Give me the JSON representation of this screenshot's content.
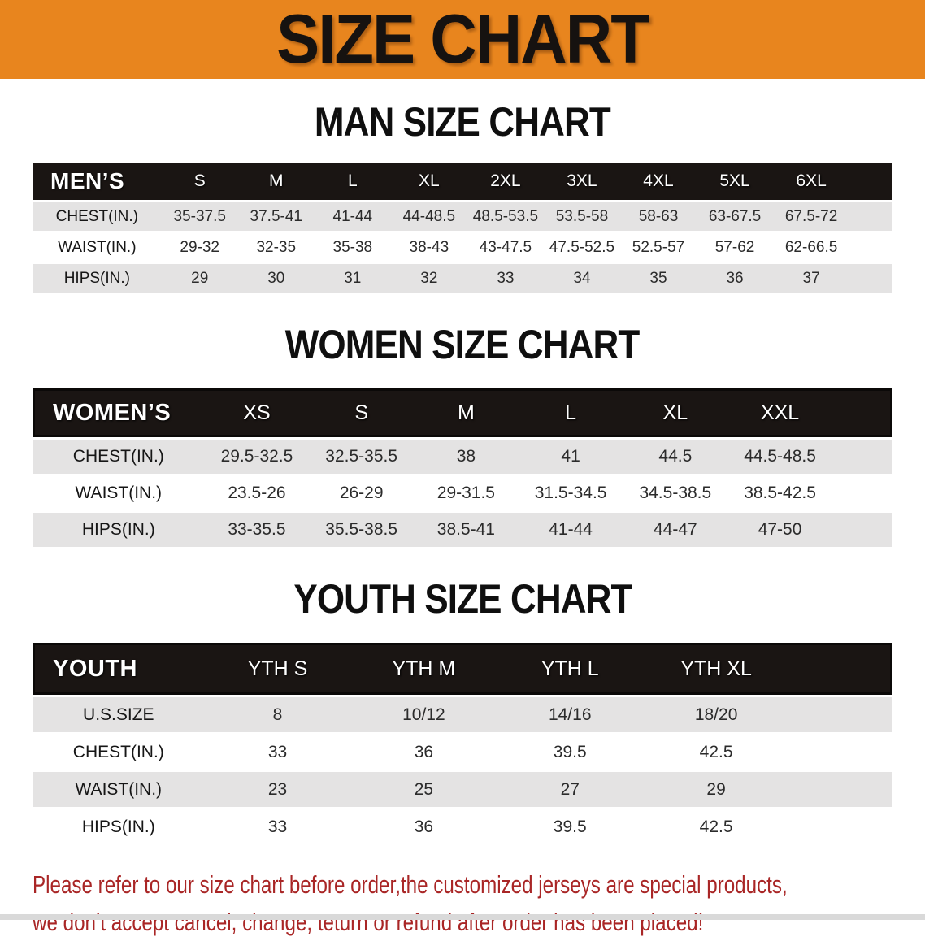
{
  "banner": {
    "title": "SIZE CHART"
  },
  "sections": [
    {
      "title": "MAN SIZE CHART",
      "header_label": "MEN’S",
      "columns": [
        "S",
        "M",
        "L",
        "XL",
        "2XL",
        "3XL",
        "4XL",
        "5XL",
        "6XL"
      ],
      "rows": [
        {
          "label": "CHEST(IN.)",
          "values": [
            "35-37.5",
            "37.5-41",
            "41-44",
            "44-48.5",
            "48.5-53.5",
            "53.5-58",
            "58-63",
            "63-67.5",
            "67.5-72"
          ]
        },
        {
          "label": "WAIST(IN.)",
          "values": [
            "29-32",
            "32-35",
            "35-38",
            "38-43",
            "43-47.5",
            "47.5-52.5",
            "52.5-57",
            "57-62",
            "62-66.5"
          ]
        },
        {
          "label": "HIPS(IN.)",
          "values": [
            "29",
            "30",
            "31",
            "32",
            "33",
            "34",
            "35",
            "36",
            "37"
          ]
        }
      ]
    },
    {
      "title": "WOMEN SIZE CHART",
      "header_label": "WOMEN’S",
      "columns": [
        "XS",
        "S",
        "M",
        "L",
        "XL",
        "XXL"
      ],
      "rows": [
        {
          "label": "CHEST(IN.)",
          "values": [
            "29.5-32.5",
            "32.5-35.5",
            "38",
            "41",
            "44.5",
            "44.5-48.5"
          ]
        },
        {
          "label": "WAIST(IN.)",
          "values": [
            "23.5-26",
            "26-29",
            "29-31.5",
            "31.5-34.5",
            "34.5-38.5",
            "38.5-42.5"
          ]
        },
        {
          "label": "HIPS(IN.)",
          "values": [
            "33-35.5",
            "35.5-38.5",
            "38.5-41",
            "41-44",
            "44-47",
            "47-50"
          ]
        }
      ]
    },
    {
      "title": "YOUTH SIZE CHART",
      "header_label": "YOUTH",
      "columns": [
        "YTH S",
        "YTH M",
        "YTH L",
        "YTH XL"
      ],
      "rows": [
        {
          "label": "U.S.SIZE",
          "values": [
            "8",
            "10/12",
            "14/16",
            "18/20"
          ]
        },
        {
          "label": "CHEST(IN.)",
          "values": [
            "33",
            "36",
            "39.5",
            "42.5"
          ]
        },
        {
          "label": "WAIST(IN.)",
          "values": [
            "23",
            "25",
            "27",
            "29"
          ]
        },
        {
          "label": "HIPS(IN.)",
          "values": [
            "33",
            "36",
            "39.5",
            "42.5"
          ]
        }
      ]
    }
  ],
  "disclaimer": {
    "line1": "Please refer to our size chart before order,the customized jerseys are special products,",
    "line2": "we don’t accept cancel, change, teturn or refund after order has been placed!"
  },
  "colors": {
    "banner_bg": "#E8851E",
    "banner_text": "#161210",
    "bar_bg": "#1A1513",
    "bar_text": "#FFFFFF",
    "stripe": "#E4E3E3",
    "cell_text": "#2B2B2B",
    "disclaimer_text": "#A92626",
    "bottom_strip": "#D9D9D9"
  }
}
